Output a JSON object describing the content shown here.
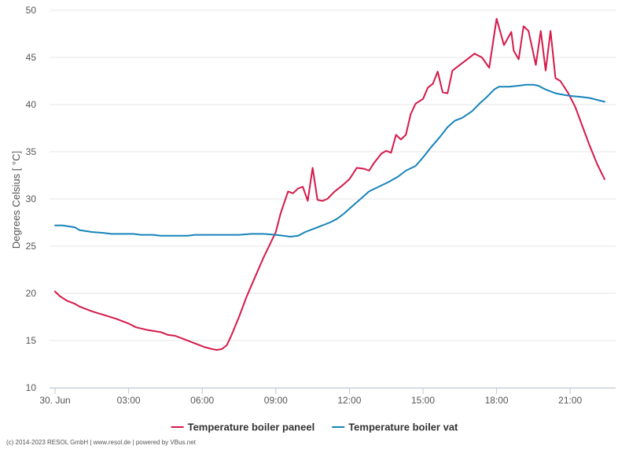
{
  "chart_data": {
    "type": "line",
    "title": "",
    "xlabel": "",
    "ylabel": "Degrees Celsius [ °C]",
    "ylim": [
      10,
      50
    ],
    "yticks": [
      10,
      15,
      20,
      25,
      30,
      35,
      40,
      45,
      50
    ],
    "xlim": [
      0,
      22.5
    ],
    "xticks": [
      {
        "x": 0,
        "label": "30. Jun"
      },
      {
        "x": 3,
        "label": "03:00"
      },
      {
        "x": 6,
        "label": "06:00"
      },
      {
        "x": 9,
        "label": "09:00"
      },
      {
        "x": 12,
        "label": "12:00"
      },
      {
        "x": 15,
        "label": "15:00"
      },
      {
        "x": 18,
        "label": "18:00"
      },
      {
        "x": 21,
        "label": "21:00"
      }
    ],
    "grid": true,
    "legend_position": "bottom-center",
    "series": [
      {
        "name": "Temperature boiler paneel",
        "color": "#d4194a",
        "points": [
          [
            0,
            20.2
          ],
          [
            0.2,
            19.7
          ],
          [
            0.5,
            19.2
          ],
          [
            0.8,
            18.9
          ],
          [
            1.0,
            18.6
          ],
          [
            1.5,
            18.1
          ],
          [
            2.0,
            17.7
          ],
          [
            2.5,
            17.3
          ],
          [
            3.0,
            16.8
          ],
          [
            3.3,
            16.4
          ],
          [
            3.8,
            16.1
          ],
          [
            4.3,
            15.9
          ],
          [
            4.6,
            15.6
          ],
          [
            4.9,
            15.5
          ],
          [
            5.2,
            15.2
          ],
          [
            5.5,
            14.9
          ],
          [
            5.8,
            14.6
          ],
          [
            6.1,
            14.3
          ],
          [
            6.4,
            14.1
          ],
          [
            6.6,
            14.0
          ],
          [
            6.8,
            14.1
          ],
          [
            7.0,
            14.5
          ],
          [
            7.2,
            15.6
          ],
          [
            7.5,
            17.5
          ],
          [
            7.8,
            19.6
          ],
          [
            8.1,
            21.4
          ],
          [
            8.5,
            23.8
          ],
          [
            9.0,
            26.5
          ],
          [
            9.2,
            28.5
          ],
          [
            9.5,
            30.8
          ],
          [
            9.7,
            30.6
          ],
          [
            9.9,
            31.1
          ],
          [
            10.1,
            31.3
          ],
          [
            10.3,
            29.8
          ],
          [
            10.5,
            33.3
          ],
          [
            10.7,
            29.9
          ],
          [
            10.9,
            29.8
          ],
          [
            11.1,
            30.0
          ],
          [
            11.4,
            30.8
          ],
          [
            11.7,
            31.4
          ],
          [
            12.0,
            32.1
          ],
          [
            12.3,
            33.3
          ],
          [
            12.6,
            33.2
          ],
          [
            12.8,
            33.0
          ],
          [
            13.0,
            33.8
          ],
          [
            13.3,
            34.8
          ],
          [
            13.5,
            35.1
          ],
          [
            13.7,
            34.9
          ],
          [
            13.9,
            36.8
          ],
          [
            14.1,
            36.3
          ],
          [
            14.3,
            36.8
          ],
          [
            14.5,
            39.0
          ],
          [
            14.7,
            40.1
          ],
          [
            15.0,
            40.6
          ],
          [
            15.2,
            41.8
          ],
          [
            15.4,
            42.2
          ],
          [
            15.6,
            43.5
          ],
          [
            15.8,
            41.3
          ],
          [
            16.0,
            41.2
          ],
          [
            16.2,
            43.6
          ],
          [
            16.5,
            44.2
          ],
          [
            16.8,
            44.8
          ],
          [
            17.1,
            45.4
          ],
          [
            17.4,
            45.0
          ],
          [
            17.7,
            43.9
          ],
          [
            18.0,
            49.1
          ],
          [
            18.3,
            46.3
          ],
          [
            18.6,
            47.7
          ],
          [
            18.7,
            45.7
          ],
          [
            18.9,
            44.8
          ],
          [
            19.1,
            48.3
          ],
          [
            19.3,
            47.8
          ],
          [
            19.6,
            44.2
          ],
          [
            19.8,
            47.8
          ],
          [
            20.0,
            43.6
          ],
          [
            20.2,
            47.8
          ],
          [
            20.4,
            42.8
          ],
          [
            20.6,
            42.5
          ],
          [
            20.9,
            41.3
          ],
          [
            21.2,
            39.8
          ],
          [
            21.5,
            37.7
          ],
          [
            21.8,
            35.6
          ],
          [
            22.1,
            33.7
          ],
          [
            22.4,
            32.1
          ]
        ]
      },
      {
        "name": "Temperature boiler vat",
        "color": "#1783b9",
        "points": [
          [
            0,
            27.2
          ],
          [
            0.3,
            27.2
          ],
          [
            0.8,
            27.0
          ],
          [
            1.0,
            26.7
          ],
          [
            1.5,
            26.5
          ],
          [
            2.0,
            26.4
          ],
          [
            2.3,
            26.3
          ],
          [
            2.8,
            26.3
          ],
          [
            3.2,
            26.3
          ],
          [
            3.5,
            26.2
          ],
          [
            4.0,
            26.2
          ],
          [
            4.3,
            26.1
          ],
          [
            5.0,
            26.1
          ],
          [
            5.4,
            26.1
          ],
          [
            5.7,
            26.2
          ],
          [
            6.0,
            26.2
          ],
          [
            7.0,
            26.2
          ],
          [
            7.5,
            26.2
          ],
          [
            8.0,
            26.3
          ],
          [
            8.5,
            26.3
          ],
          [
            9.0,
            26.2
          ],
          [
            9.3,
            26.1
          ],
          [
            9.6,
            26.0
          ],
          [
            9.9,
            26.1
          ],
          [
            10.2,
            26.5
          ],
          [
            10.5,
            26.8
          ],
          [
            10.8,
            27.1
          ],
          [
            11.2,
            27.5
          ],
          [
            11.5,
            27.9
          ],
          [
            11.8,
            28.5
          ],
          [
            12.1,
            29.2
          ],
          [
            12.5,
            30.1
          ],
          [
            12.8,
            30.8
          ],
          [
            13.2,
            31.3
          ],
          [
            13.6,
            31.8
          ],
          [
            14.0,
            32.4
          ],
          [
            14.3,
            33.0
          ],
          [
            14.7,
            33.5
          ],
          [
            15.0,
            34.4
          ],
          [
            15.3,
            35.4
          ],
          [
            15.7,
            36.6
          ],
          [
            16.0,
            37.6
          ],
          [
            16.3,
            38.3
          ],
          [
            16.6,
            38.6
          ],
          [
            17.0,
            39.3
          ],
          [
            17.3,
            40.1
          ],
          [
            17.6,
            40.8
          ],
          [
            17.9,
            41.6
          ],
          [
            18.1,
            41.9
          ],
          [
            18.5,
            41.9
          ],
          [
            18.9,
            42.0
          ],
          [
            19.2,
            42.1
          ],
          [
            19.5,
            42.1
          ],
          [
            19.7,
            42.0
          ],
          [
            20.0,
            41.6
          ],
          [
            20.4,
            41.2
          ],
          [
            20.8,
            41.0
          ],
          [
            21.1,
            40.9
          ],
          [
            21.5,
            40.8
          ],
          [
            21.8,
            40.7
          ],
          [
            22.1,
            40.5
          ],
          [
            22.4,
            40.3
          ]
        ]
      }
    ]
  },
  "footer": {
    "text": "(c) 2014-2023 RESOL GmbH | www.resol.de | powered by VBus.net"
  }
}
